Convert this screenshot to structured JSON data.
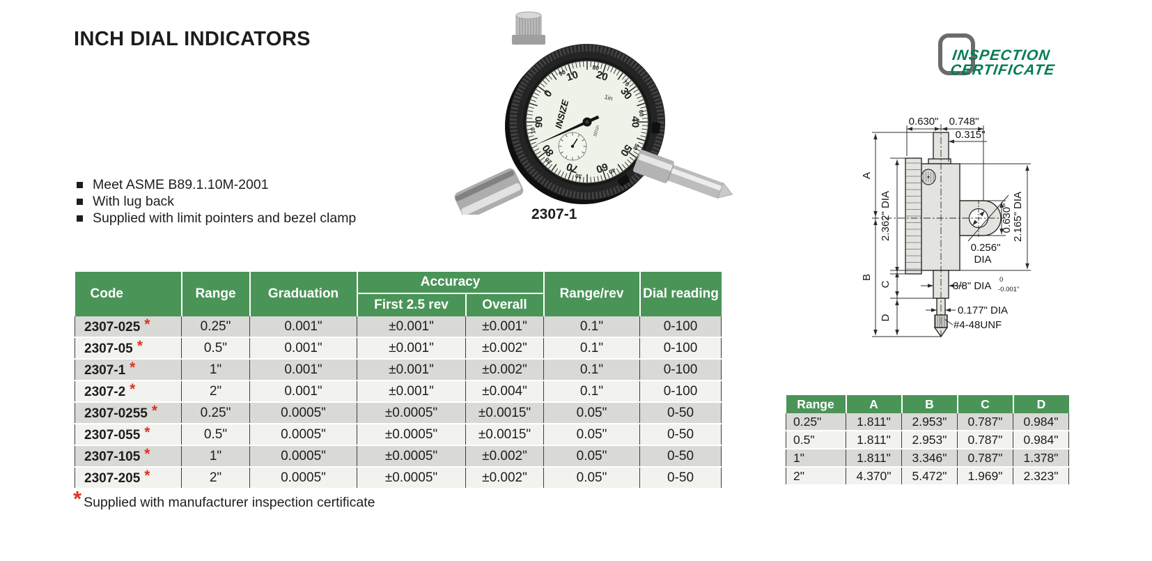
{
  "page": {
    "title": "INCH DIAL INDICATORS"
  },
  "certificate_badge": {
    "line1": "INSPECTION",
    "line2": "CERTIFICATE",
    "text_color": "#007c52",
    "box_color": "#6b6b6b"
  },
  "features": [
    "Meet ASME B89.1.10M-2001",
    "With lug back",
    "Supplied with limit pointers and bezel clamp"
  ],
  "product": {
    "model_caption": "2307-1",
    "brand": "INSIZE",
    "dial_numbers": [
      "0",
      "10",
      "20",
      "30",
      "40",
      "50",
      "60",
      "70",
      "80",
      "90"
    ],
    "dial_small_numbers": [
      "",
      "90",
      "80",
      "70",
      "60",
      "50",
      "40",
      "30",
      "20",
      "10"
    ],
    "marking_range": "1in",
    "marking_grad": ".001in"
  },
  "main_table": {
    "headers": {
      "code": "Code",
      "range": "Range",
      "graduation": "Graduation",
      "accuracy": "Accuracy",
      "first": "First 2.5 rev",
      "overall": "Overall",
      "range_rev": "Range/rev",
      "dial_reading": "Dial reading"
    },
    "rows": [
      {
        "code": "2307-025",
        "range": "0.25\"",
        "graduation": "0.001\"",
        "first": "±0.001\"",
        "overall": "±0.001\"",
        "range_rev": "0.1\"",
        "dial_reading": "0-100"
      },
      {
        "code": "2307-05",
        "range": "0.5\"",
        "graduation": "0.001\"",
        "first": "±0.001\"",
        "overall": "±0.002\"",
        "range_rev": "0.1\"",
        "dial_reading": "0-100"
      },
      {
        "code": "2307-1",
        "range": "1\"",
        "graduation": "0.001\"",
        "first": "±0.001\"",
        "overall": "±0.002\"",
        "range_rev": "0.1\"",
        "dial_reading": "0-100"
      },
      {
        "code": "2307-2",
        "range": "2\"",
        "graduation": "0.001\"",
        "first": "±0.001\"",
        "overall": "±0.004\"",
        "range_rev": "0.1\"",
        "dial_reading": "0-100"
      },
      {
        "code": "2307-0255",
        "range": "0.25\"",
        "graduation": "0.0005\"",
        "first": "±0.0005\"",
        "overall": "±0.0015\"",
        "range_rev": "0.05\"",
        "dial_reading": "0-50"
      },
      {
        "code": "2307-055",
        "range": "0.5\"",
        "graduation": "0.0005\"",
        "first": "±0.0005\"",
        "overall": "±0.0015\"",
        "range_rev": "0.05\"",
        "dial_reading": "0-50"
      },
      {
        "code": "2307-105",
        "range": "1\"",
        "graduation": "0.0005\"",
        "first": "±0.0005\"",
        "overall": "±0.002\"",
        "range_rev": "0.05\"",
        "dial_reading": "0-50"
      },
      {
        "code": "2307-205",
        "range": "2\"",
        "graduation": "0.0005\"",
        "first": "±0.0005\"",
        "overall": "±0.002\"",
        "range_rev": "0.05\"",
        "dial_reading": "0-50"
      }
    ]
  },
  "dim_table": {
    "headers": [
      "Range",
      "A",
      "B",
      "C",
      "D"
    ],
    "rows": [
      [
        "0.25\"",
        "1.811\"",
        "2.953\"",
        "0.787\"",
        "0.984\""
      ],
      [
        "0.5\"",
        "1.811\"",
        "2.953\"",
        "0.787\"",
        "0.984\""
      ],
      [
        "1\"",
        "1.811\"",
        "3.346\"",
        "0.787\"",
        "1.378\""
      ],
      [
        "2\"",
        "4.370\"",
        "5.472\"",
        "1.969\"",
        "2.323\""
      ]
    ]
  },
  "drawing": {
    "labels": {
      "top_left": "0.630\"",
      "top_right": "0.748\"",
      "stem_top_dia": "0.315\"",
      "a": "A",
      "b": "B",
      "c": "C",
      "d": "D",
      "bezel_dia": "2.362\" DIA",
      "body_dia": "2.165\" DIA",
      "lug_width": "0.630\"",
      "hole_dia_value": "0.256\"",
      "hole_dia_unit": "DIA",
      "stem_dia": "3/8\" DIA",
      "stem_tol_upper": "0",
      "stem_tol_lower": "-0.001\"",
      "spindle_dia": "0.177\" DIA",
      "thread": "#4-48UNF"
    }
  },
  "footnote": {
    "star": "*",
    "text": "Supplied with manufacturer inspection certificate"
  },
  "colors": {
    "table_header_green": "#4a9458",
    "row_gray": "#d9d9d5",
    "row_light": "#f2f2ef",
    "asterisk_red": "#e03222",
    "certificate_green": "#007c52"
  }
}
